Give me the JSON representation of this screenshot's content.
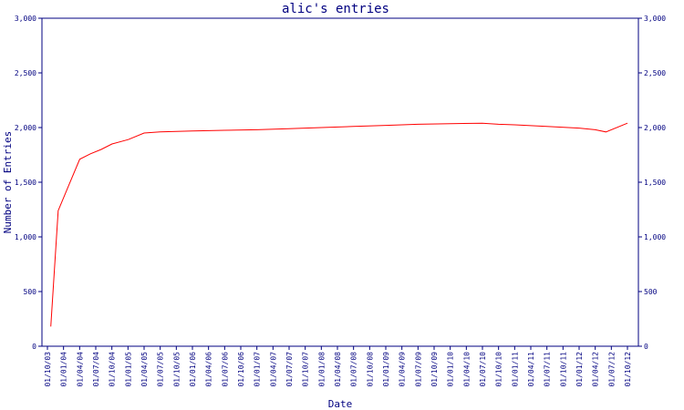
{
  "chart_data": {
    "type": "line",
    "title": "alic's entries",
    "xlabel": "Date",
    "ylabel": "Number of Entries",
    "ylim": [
      0,
      3000
    ],
    "y_ticks": [
      0,
      500,
      1000,
      1500,
      2000,
      2500,
      3000
    ],
    "y_tick_labels": [
      "0",
      "500",
      "1,000",
      "1,500",
      "2,000",
      "2,500",
      "3,000"
    ],
    "y_right_tick_labels": [
      "0",
      "500",
      "1,000",
      "1,500",
      "2,000",
      "2,500",
      "3,000"
    ],
    "x_tick_labels": [
      "01/10/03",
      "01/01/04",
      "01/04/04",
      "01/07/04",
      "01/10/04",
      "01/01/05",
      "01/04/05",
      "01/07/05",
      "01/10/05",
      "01/01/06",
      "01/04/06",
      "01/07/06",
      "01/10/06",
      "01/01/07",
      "01/04/07",
      "01/07/07",
      "01/10/07",
      "01/01/08",
      "01/04/08",
      "01/07/08",
      "01/10/08",
      "01/01/09",
      "01/04/09",
      "01/07/09",
      "01/10/09",
      "01/01/10",
      "01/04/10",
      "01/07/10",
      "01/10/10",
      "01/01/11",
      "01/04/11",
      "01/07/11",
      "01/10/11",
      "01/01/12",
      "01/04/12",
      "01/07/12",
      "01/10/12"
    ],
    "grid": false,
    "series": [
      {
        "color": "#ff0000",
        "x": [
          "2003-10-20",
          "2003-12-01",
          "2004-02-01",
          "2004-04-01",
          "2004-06-01",
          "2004-08-01",
          "2004-10-01",
          "2005-01-01",
          "2005-04-01",
          "2005-07-01",
          "2005-10-01",
          "2006-01-01",
          "2006-07-01",
          "2007-01-01",
          "2007-07-01",
          "2008-01-01",
          "2008-07-01",
          "2009-01-01",
          "2009-07-01",
          "2010-01-01",
          "2010-07-01",
          "2010-10-01",
          "2011-01-01",
          "2011-07-01",
          "2012-01-01",
          "2012-04-01",
          "2012-06-01",
          "2012-10-01"
        ],
        "values": [
          180,
          1240,
          1480,
          1710,
          1760,
          1800,
          1850,
          1890,
          1950,
          1960,
          1965,
          1968,
          1975,
          1980,
          1990,
          2000,
          2010,
          2020,
          2030,
          2035,
          2040,
          2030,
          2025,
          2010,
          1995,
          1980,
          1960,
          2040
        ]
      }
    ]
  }
}
